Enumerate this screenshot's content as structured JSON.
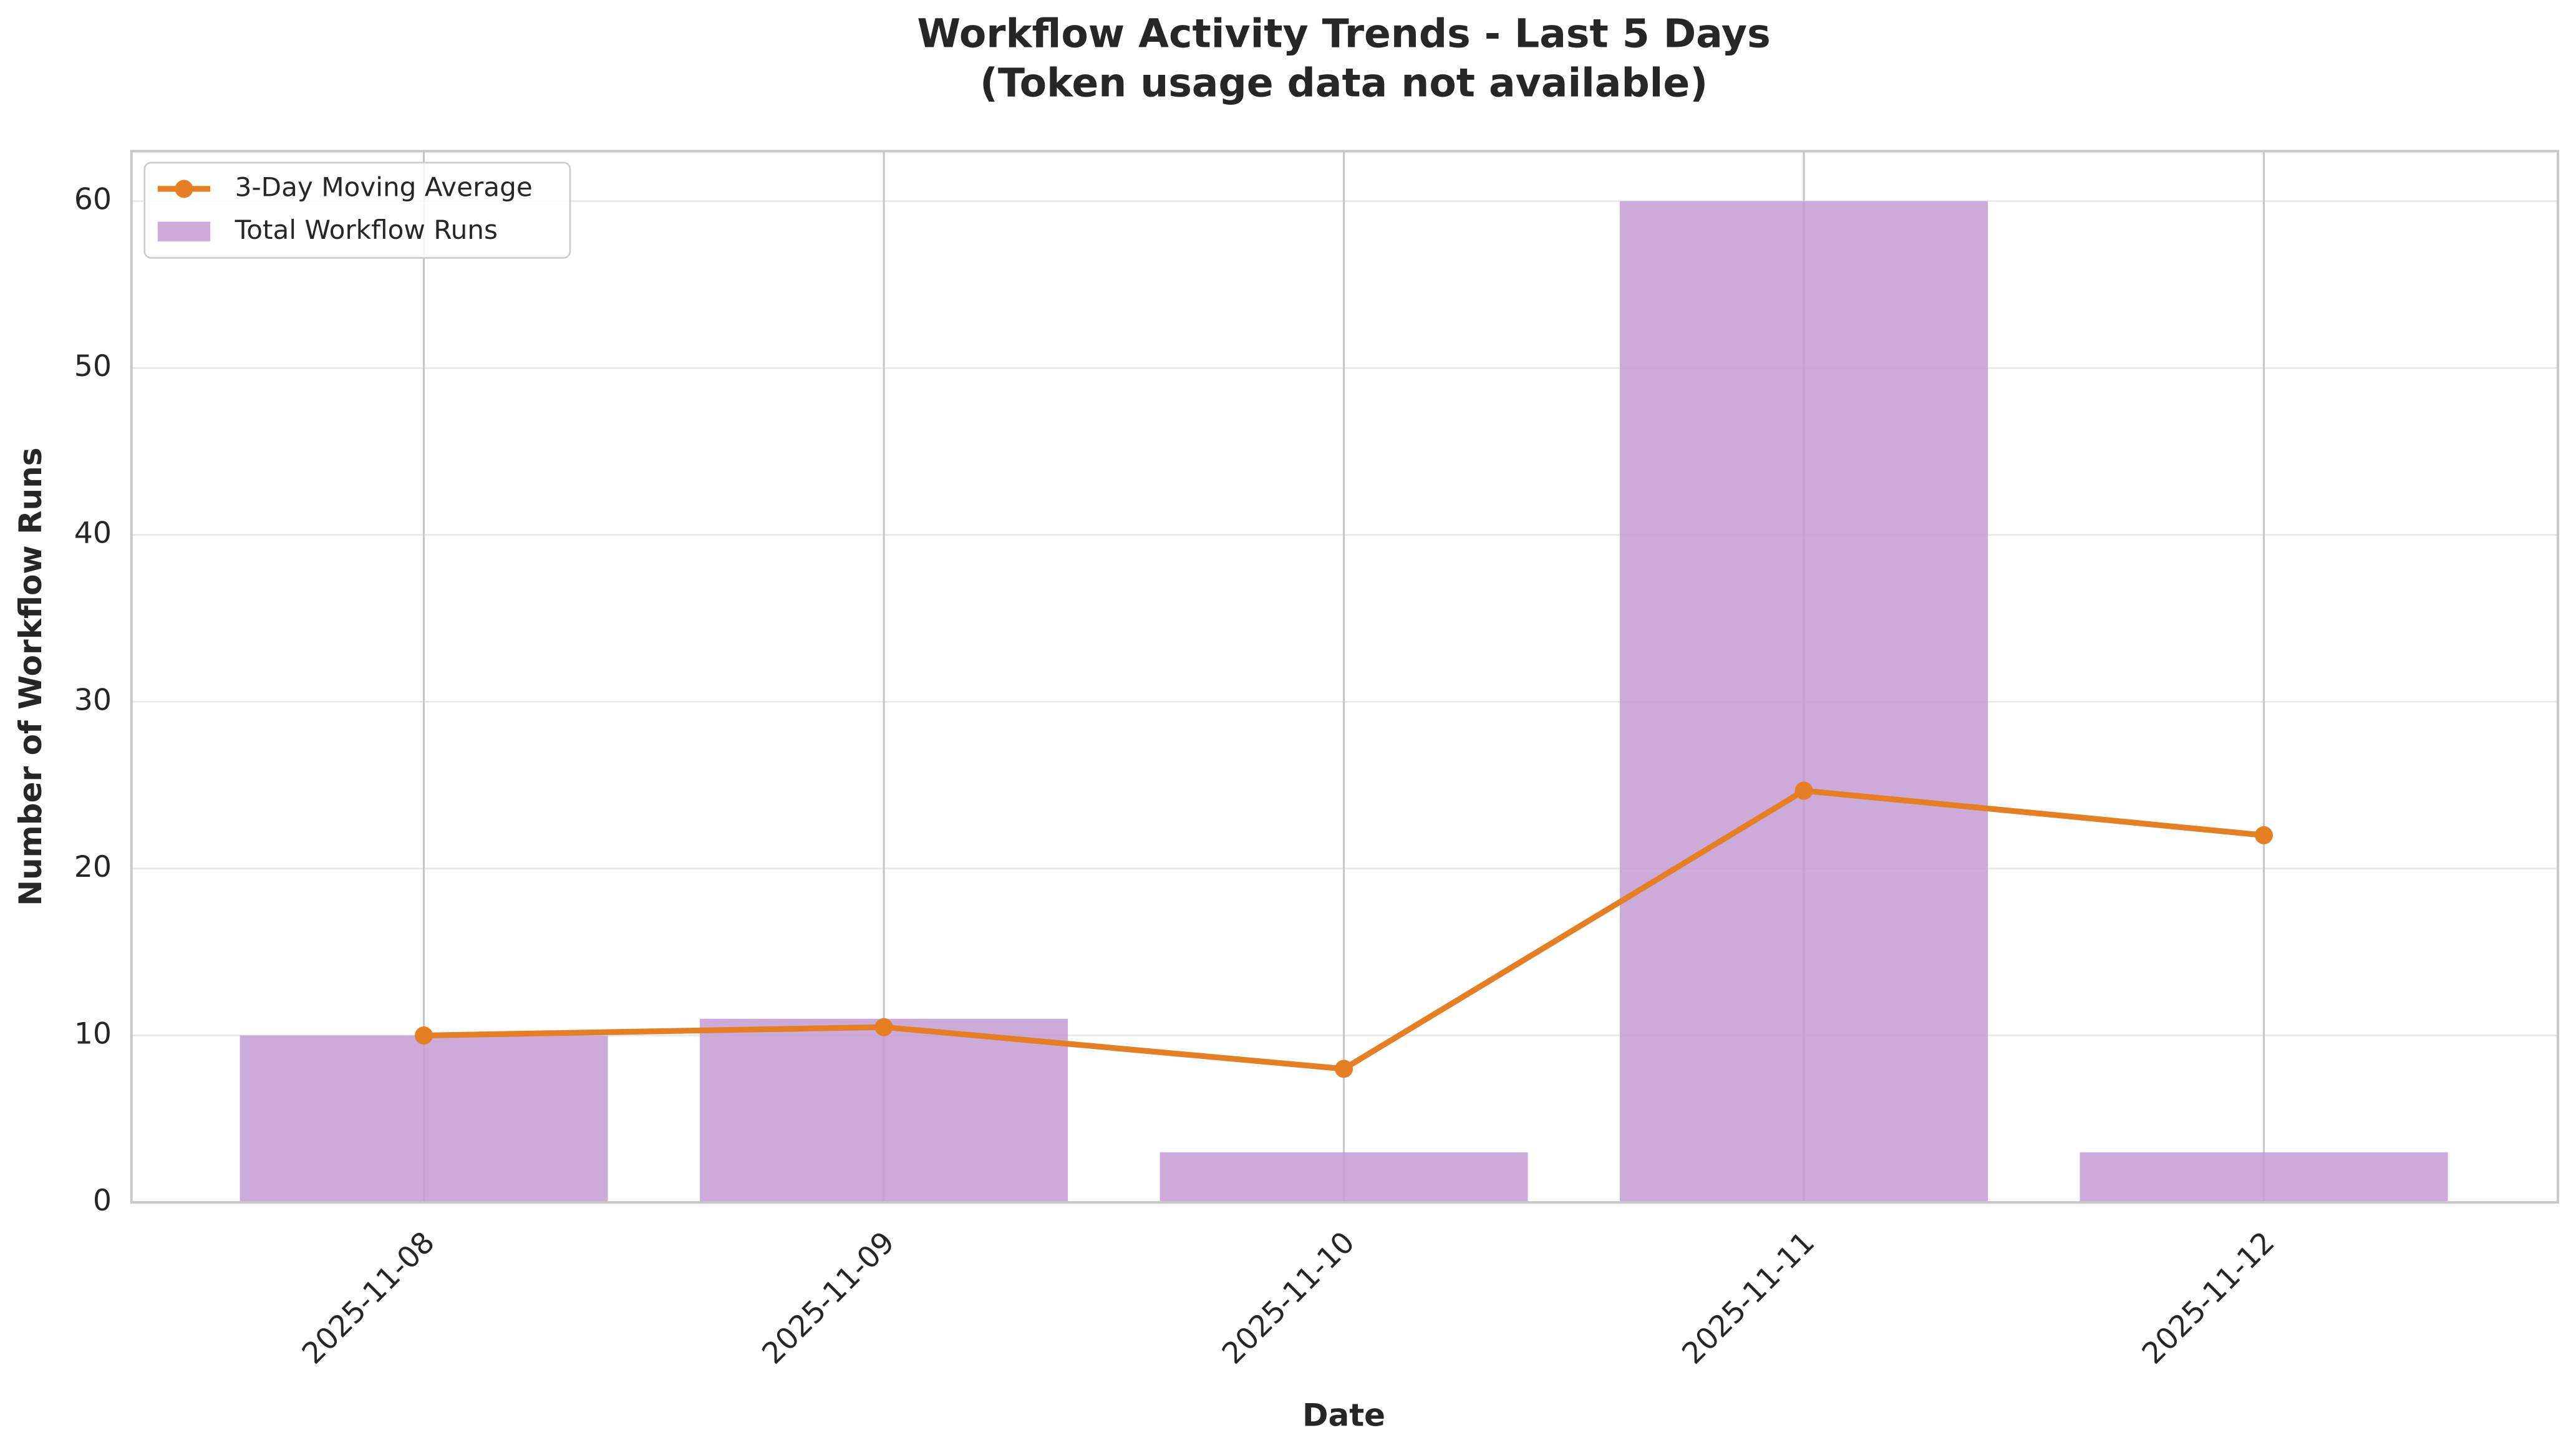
{
  "chart_data": {
    "type": "bar",
    "title": "Workflow Activity Trends - Last 5 Days",
    "subtitle": "(Token usage data not available)",
    "x_label": "Date",
    "y_label": "Number of Workflow Runs",
    "categories": [
      "2025-11-08",
      "2025-11-09",
      "2025-11-10",
      "2025-11-11",
      "2025-11-12"
    ],
    "series": [
      {
        "name": "3-Day Moving Average",
        "type": "line",
        "color": "#e67e22",
        "values": [
          10,
          10.5,
          8,
          24.67,
          22
        ]
      },
      {
        "name": "Total Workflow Runs",
        "type": "bar",
        "color": "#c39bd3",
        "values": [
          10,
          11,
          3,
          60,
          3
        ]
      }
    ],
    "ylim": [
      0,
      63
    ],
    "yticks": [
      0,
      10,
      20,
      30,
      40,
      50,
      60
    ],
    "grid": true,
    "legend": "upper left"
  }
}
